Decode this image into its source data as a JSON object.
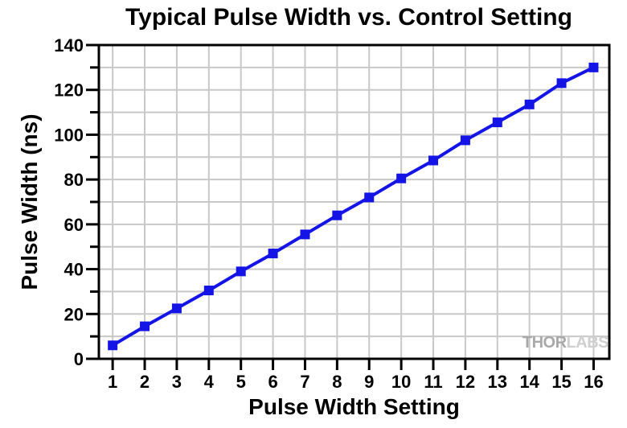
{
  "chart_data": {
    "type": "line",
    "title": "Typical Pulse Width vs. Control Setting",
    "xlabel": "Pulse Width Setting",
    "ylabel": "Pulse Width (ns)",
    "x": [
      1,
      2,
      3,
      4,
      5,
      6,
      7,
      8,
      9,
      10,
      11,
      12,
      13,
      14,
      15,
      16
    ],
    "series": [
      {
        "name": "Typical Pulse Width",
        "values": [
          6,
          14.5,
          22.5,
          30.5,
          39,
          47,
          55.5,
          64,
          72,
          80.5,
          88.5,
          97.5,
          105.5,
          113.5,
          123,
          130
        ]
      }
    ],
    "xlim": [
      0.57,
      16.49
    ],
    "ylim": [
      0,
      140
    ],
    "x_ticks": [
      1,
      2,
      3,
      4,
      5,
      6,
      7,
      8,
      9,
      10,
      11,
      12,
      13,
      14,
      15,
      16
    ],
    "y_ticks": [
      0,
      20,
      40,
      60,
      80,
      100,
      120,
      140
    ],
    "y_minor_ticks": [
      10,
      30,
      50,
      70,
      90,
      110,
      130
    ],
    "grid": {
      "show": true,
      "x_step": 1,
      "y_step": 10,
      "color": "#c8c8c8"
    },
    "legend": {
      "show": false
    },
    "line_color": "#1414e6",
    "marker": "square",
    "marker_color": "#1414e6",
    "axis_color": "#000000",
    "background": "#ffffff"
  },
  "watermark": {
    "thor": "THOR",
    "labs": "LABS",
    "thor_color": "#a9a9a9",
    "labs_color": "#cfcfcf"
  }
}
